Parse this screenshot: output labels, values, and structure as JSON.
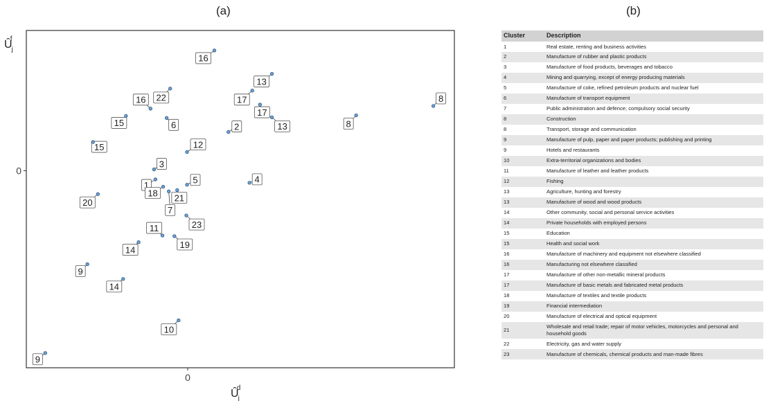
{
  "panel_a_title": "(a)",
  "panel_b_title": "(b)",
  "chart_data": [
    {
      "type": "scatter",
      "title": "(a)",
      "xlabel_main": "Û",
      "xlabel_sub": "j",
      "xlabel_sup": "d",
      "ylabel_main": "Û",
      "ylabel_sub": "j",
      "ylabel_sup": "f",
      "x_ticks": [
        {
          "value": 0,
          "label": "0"
        }
      ],
      "y_ticks": [
        {
          "value": 0,
          "label": "0"
        }
      ],
      "xlim": [
        -2.3,
        3.8
      ],
      "ylim": [
        -2.95,
        2.1
      ],
      "grid": false,
      "point_color": "#6b9fd4",
      "points": [
        {
          "label": "16",
          "x": 0.38,
          "y": 1.8
        },
        {
          "label": "13",
          "x": 1.2,
          "y": 1.45
        },
        {
          "label": "22",
          "x": -0.25,
          "y": 1.23
        },
        {
          "label": "17",
          "x": 0.92,
          "y": 1.2
        },
        {
          "label": "16",
          "x": -0.53,
          "y": 0.93
        },
        {
          "label": "17",
          "x": 1.03,
          "y": 0.99
        },
        {
          "label": "6",
          "x": -0.3,
          "y": 0.79
        },
        {
          "label": "15",
          "x": -0.88,
          "y": 0.82
        },
        {
          "label": "13",
          "x": 1.2,
          "y": 0.8
        },
        {
          "label": "2",
          "x": 0.58,
          "y": 0.58
        },
        {
          "label": "8",
          "x": 3.5,
          "y": 0.97
        },
        {
          "label": "8",
          "x": 2.4,
          "y": 0.83
        },
        {
          "label": "15",
          "x": -1.35,
          "y": 0.43
        },
        {
          "label": "12",
          "x": -0.01,
          "y": 0.28
        },
        {
          "label": "3",
          "x": -0.48,
          "y": 0.02
        },
        {
          "label": "1",
          "x": -0.46,
          "y": -0.13
        },
        {
          "label": "4",
          "x": 0.88,
          "y": -0.18
        },
        {
          "label": "5",
          "x": -0.01,
          "y": -0.21
        },
        {
          "label": "18",
          "x": -0.35,
          "y": -0.24
        },
        {
          "label": "21",
          "x": -0.15,
          "y": -0.29
        },
        {
          "label": "7",
          "x": -0.27,
          "y": -0.31
        },
        {
          "label": "20",
          "x": -1.28,
          "y": -0.35
        },
        {
          "label": "23",
          "x": -0.02,
          "y": -0.67
        },
        {
          "label": "11",
          "x": -0.36,
          "y": -0.97
        },
        {
          "label": "19",
          "x": -0.19,
          "y": -0.98
        },
        {
          "label": "14",
          "x": -0.7,
          "y": -1.07
        },
        {
          "label": "9",
          "x": -1.43,
          "y": -1.4
        },
        {
          "label": "14",
          "x": -0.92,
          "y": -1.62
        },
        {
          "label": "10",
          "x": -0.13,
          "y": -2.24
        },
        {
          "label": "9",
          "x": -2.03,
          "y": -2.73
        }
      ]
    },
    {
      "type": "table",
      "title": "(b)",
      "columns": [
        "Cluster",
        "Description"
      ],
      "rows": [
        [
          "1",
          "Real estate, renting and business activities"
        ],
        [
          "2",
          "Manufacture of rubber and plastic products"
        ],
        [
          "3",
          "Manufacture of food products, beverages and tobacco"
        ],
        [
          "4",
          "Mining and quarrying, except of energy producing materials"
        ],
        [
          "5",
          "Manufacture of coke, refined petroleum products and nuclear fuel"
        ],
        [
          "6",
          "Manufacture of transport equipment"
        ],
        [
          "7",
          "Public administration and defence; compulsory social security"
        ],
        [
          "8",
          "Construction"
        ],
        [
          "8",
          "Transport, storage and communication"
        ],
        [
          "9",
          "Manufacture of pulp, paper and paper products; publishing and printing"
        ],
        [
          "9",
          "Hotels and restaurants"
        ],
        [
          "10",
          "Extra-territorial organizations and bodies"
        ],
        [
          "11",
          "Manufacture of leather and leather products"
        ],
        [
          "12",
          "Fishing"
        ],
        [
          "13",
          "Agriculture, hunting and forestry"
        ],
        [
          "13",
          "Manufacture of wood and wood products"
        ],
        [
          "14",
          "Other community, social and personal service activities"
        ],
        [
          "14",
          "Private households with employed persons"
        ],
        [
          "15",
          "Education"
        ],
        [
          "15",
          "Health and social work"
        ],
        [
          "16",
          "Manufacture of machinery and equipment not elsewhere classified"
        ],
        [
          "16",
          "Manufacturing not elsewhere classified"
        ],
        [
          "17",
          "Manufacture of other non-metallic mineral products"
        ],
        [
          "17",
          "Manufacture of basic metals and fabricated metal products"
        ],
        [
          "18",
          "Manufacture of textiles and textile products"
        ],
        [
          "19",
          "Financial intermediation"
        ],
        [
          "20",
          "Manufacture of electrical and optical equipment"
        ],
        [
          "21",
          "Wholesale and retail trade; repair of motor vehicles, motorcycles and personal and household goods"
        ],
        [
          "22",
          "Electricity, gas and water supply"
        ],
        [
          "23",
          "Manufacture of chemicals, chemical products and man-made fibres"
        ]
      ]
    }
  ]
}
